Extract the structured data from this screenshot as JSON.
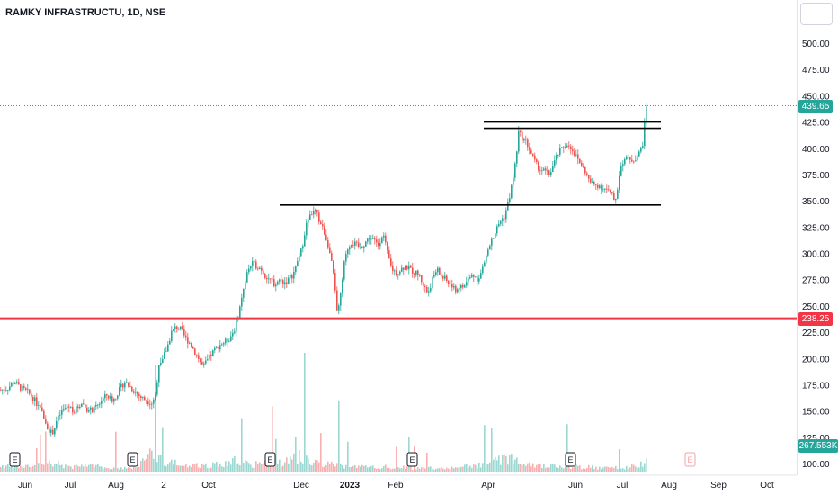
{
  "symbol_title": "RAMKY INFRASTRUCTU, 1D, NSE",
  "colors": {
    "up": "#26a69a",
    "down": "#ef5350",
    "support_line": "#f23645",
    "trend_lines": "#000000",
    "price_tag": "#26a69a",
    "support_tag": "#f23645",
    "volume_tag": "#26a69a",
    "axis_text": "#131722"
  },
  "icons": {
    "menu": "menu-button-icon",
    "earnings": "earnings-marker-icon"
  },
  "chart_data": {
    "type": "candlestick",
    "title": "RAMKY INFRASTRUCTU, 1D, NSE",
    "x_tick_labels": [
      "Jun",
      "Jul",
      "Aug",
      "2",
      "Oct",
      "Dec",
      "2023",
      "Feb",
      "Apr",
      "Jun",
      "Jul",
      "Aug",
      "Sep",
      "Oct"
    ],
    "y_tick_labels": [
      "500.00",
      "475.00",
      "450.00",
      "425.00",
      "400.00",
      "375.00",
      "350.00",
      "325.00",
      "300.00",
      "275.00",
      "250.00",
      "225.00",
      "200.00",
      "175.00",
      "150.00",
      "125.00",
      "100.00"
    ],
    "y_ticks": [
      500,
      475,
      450,
      425,
      400,
      375,
      350,
      325,
      300,
      275,
      250,
      225,
      200,
      175,
      150,
      125,
      100
    ],
    "ylim": [
      93,
      540
    ],
    "grid": false,
    "last_price": {
      "label": "439.65",
      "value": 439.65
    },
    "support_level": {
      "label": "238.25",
      "value": 238.25
    },
    "volume_label": "267.553K",
    "earnings_markers": [
      "E",
      "E",
      "E",
      "E",
      "E",
      "E"
    ],
    "horizontal_levels": [
      {
        "value": 425,
        "color": "black"
      },
      {
        "value": 419,
        "color": "black"
      },
      {
        "value": 346,
        "color": "black"
      },
      {
        "value": 238.25,
        "color": "red"
      }
    ],
    "price_path": [
      [
        0,
        170
      ],
      [
        8,
        172
      ],
      [
        15,
        178
      ],
      [
        22,
        172
      ],
      [
        30,
        168
      ],
      [
        38,
        160
      ],
      [
        45,
        150
      ],
      [
        52,
        135
      ],
      [
        57,
        128
      ],
      [
        62,
        140
      ],
      [
        68,
        150
      ],
      [
        75,
        155
      ],
      [
        82,
        150
      ],
      [
        90,
        158
      ],
      [
        98,
        150
      ],
      [
        105,
        152
      ],
      [
        112,
        160
      ],
      [
        118,
        165
      ],
      [
        125,
        160
      ],
      [
        132,
        170
      ],
      [
        138,
        178
      ],
      [
        145,
        172
      ],
      [
        150,
        168
      ],
      [
        156,
        163
      ],
      [
        162,
        160
      ],
      [
        168,
        158
      ],
      [
        172,
        165
      ],
      [
        176,
        195
      ],
      [
        180,
        200
      ],
      [
        185,
        210
      ],
      [
        190,
        225
      ],
      [
        195,
        230
      ],
      [
        200,
        228
      ],
      [
        205,
        220
      ],
      [
        210,
        215
      ],
      [
        215,
        208
      ],
      [
        220,
        200
      ],
      [
        225,
        192
      ],
      [
        230,
        198
      ],
      [
        235,
        205
      ],
      [
        240,
        210
      ],
      [
        245,
        214
      ],
      [
        250,
        216
      ],
      [
        255,
        220
      ],
      [
        260,
        228
      ],
      [
        265,
        245
      ],
      [
        270,
        265
      ],
      [
        275,
        285
      ],
      [
        280,
        290
      ],
      [
        285,
        288
      ],
      [
        290,
        285
      ],
      [
        295,
        278
      ],
      [
        300,
        275
      ],
      [
        305,
        270
      ],
      [
        310,
        275
      ],
      [
        315,
        272
      ],
      [
        320,
        275
      ],
      [
        325,
        280
      ],
      [
        330,
        290
      ],
      [
        335,
        305
      ],
      [
        340,
        330
      ],
      [
        345,
        338
      ],
      [
        350,
        340
      ],
      [
        355,
        330
      ],
      [
        360,
        320
      ],
      [
        365,
        305
      ],
      [
        370,
        280
      ],
      [
        374,
        245
      ],
      [
        378,
        260
      ],
      [
        382,
        290
      ],
      [
        386,
        305
      ],
      [
        390,
        310
      ],
      [
        395,
        308
      ],
      [
        400,
        305
      ],
      [
        405,
        310
      ],
      [
        410,
        315
      ],
      [
        415,
        312
      ],
      [
        420,
        308
      ],
      [
        425,
        320
      ],
      [
        430,
        300
      ],
      [
        435,
        285
      ],
      [
        440,
        282
      ],
      [
        445,
        285
      ],
      [
        450,
        288
      ],
      [
        455,
        285
      ],
      [
        460,
        282
      ],
      [
        465,
        280
      ],
      [
        470,
        270
      ],
      [
        475,
        262
      ],
      [
        480,
        275
      ],
      [
        485,
        285
      ],
      [
        490,
        278
      ],
      [
        495,
        275
      ],
      [
        500,
        270
      ],
      [
        505,
        265
      ],
      [
        510,
        268
      ],
      [
        515,
        268
      ],
      [
        520,
        275
      ],
      [
        525,
        280
      ],
      [
        530,
        276
      ],
      [
        535,
        282
      ],
      [
        540,
        298
      ],
      [
        545,
        310
      ],
      [
        550,
        320
      ],
      [
        555,
        330
      ],
      [
        560,
        335
      ],
      [
        565,
        350
      ],
      [
        570,
        372
      ],
      [
        573,
        390
      ],
      [
        576,
        415
      ],
      [
        580,
        410
      ],
      [
        585,
        405
      ],
      [
        590,
        395
      ],
      [
        595,
        385
      ],
      [
        600,
        380
      ],
      [
        605,
        378
      ],
      [
        610,
        375
      ],
      [
        615,
        385
      ],
      [
        620,
        395
      ],
      [
        625,
        400
      ],
      [
        630,
        405
      ],
      [
        635,
        400
      ],
      [
        640,
        392
      ],
      [
        645,
        385
      ],
      [
        650,
        378
      ],
      [
        655,
        368
      ],
      [
        660,
        365
      ],
      [
        665,
        365
      ],
      [
        670,
        362
      ],
      [
        675,
        360
      ],
      [
        680,
        355
      ],
      [
        683,
        349
      ],
      [
        686,
        362
      ],
      [
        690,
        385
      ],
      [
        695,
        392
      ],
      [
        700,
        388
      ],
      [
        705,
        390
      ],
      [
        710,
        395
      ],
      [
        714,
        405
      ],
      [
        718,
        439.65
      ]
    ],
    "volume_path": [
      [
        0,
        0.05
      ],
      [
        20,
        0.04
      ],
      [
        40,
        0.05
      ],
      [
        55,
        0.08
      ],
      [
        75,
        0.04
      ],
      [
        100,
        0.05
      ],
      [
        125,
        0.03
      ],
      [
        150,
        0.04
      ],
      [
        170,
        0.16
      ],
      [
        185,
        0.08
      ],
      [
        200,
        0.06
      ],
      [
        230,
        0.05
      ],
      [
        260,
        0.09
      ],
      [
        280,
        0.06
      ],
      [
        310,
        0.07
      ],
      [
        338,
        0.14
      ],
      [
        350,
        0.08
      ],
      [
        370,
        0.06
      ],
      [
        400,
        0.04
      ],
      [
        430,
        0.04
      ],
      [
        460,
        0.03
      ],
      [
        500,
        0.03
      ],
      [
        540,
        0.06
      ],
      [
        565,
        0.12
      ],
      [
        575,
        0.11
      ],
      [
        600,
        0.05
      ],
      [
        640,
        0.04
      ],
      [
        680,
        0.03
      ],
      [
        700,
        0.04
      ],
      [
        718,
        0.09
      ]
    ],
    "volume_spikes": [
      [
        172,
        0.9
      ],
      [
        203,
        0.35
      ],
      [
        268,
        0.45
      ],
      [
        302,
        0.55
      ],
      [
        338,
        1.0
      ],
      [
        376,
        0.6
      ],
      [
        571,
        0.85
      ],
      [
        630,
        0.4
      ]
    ]
  }
}
